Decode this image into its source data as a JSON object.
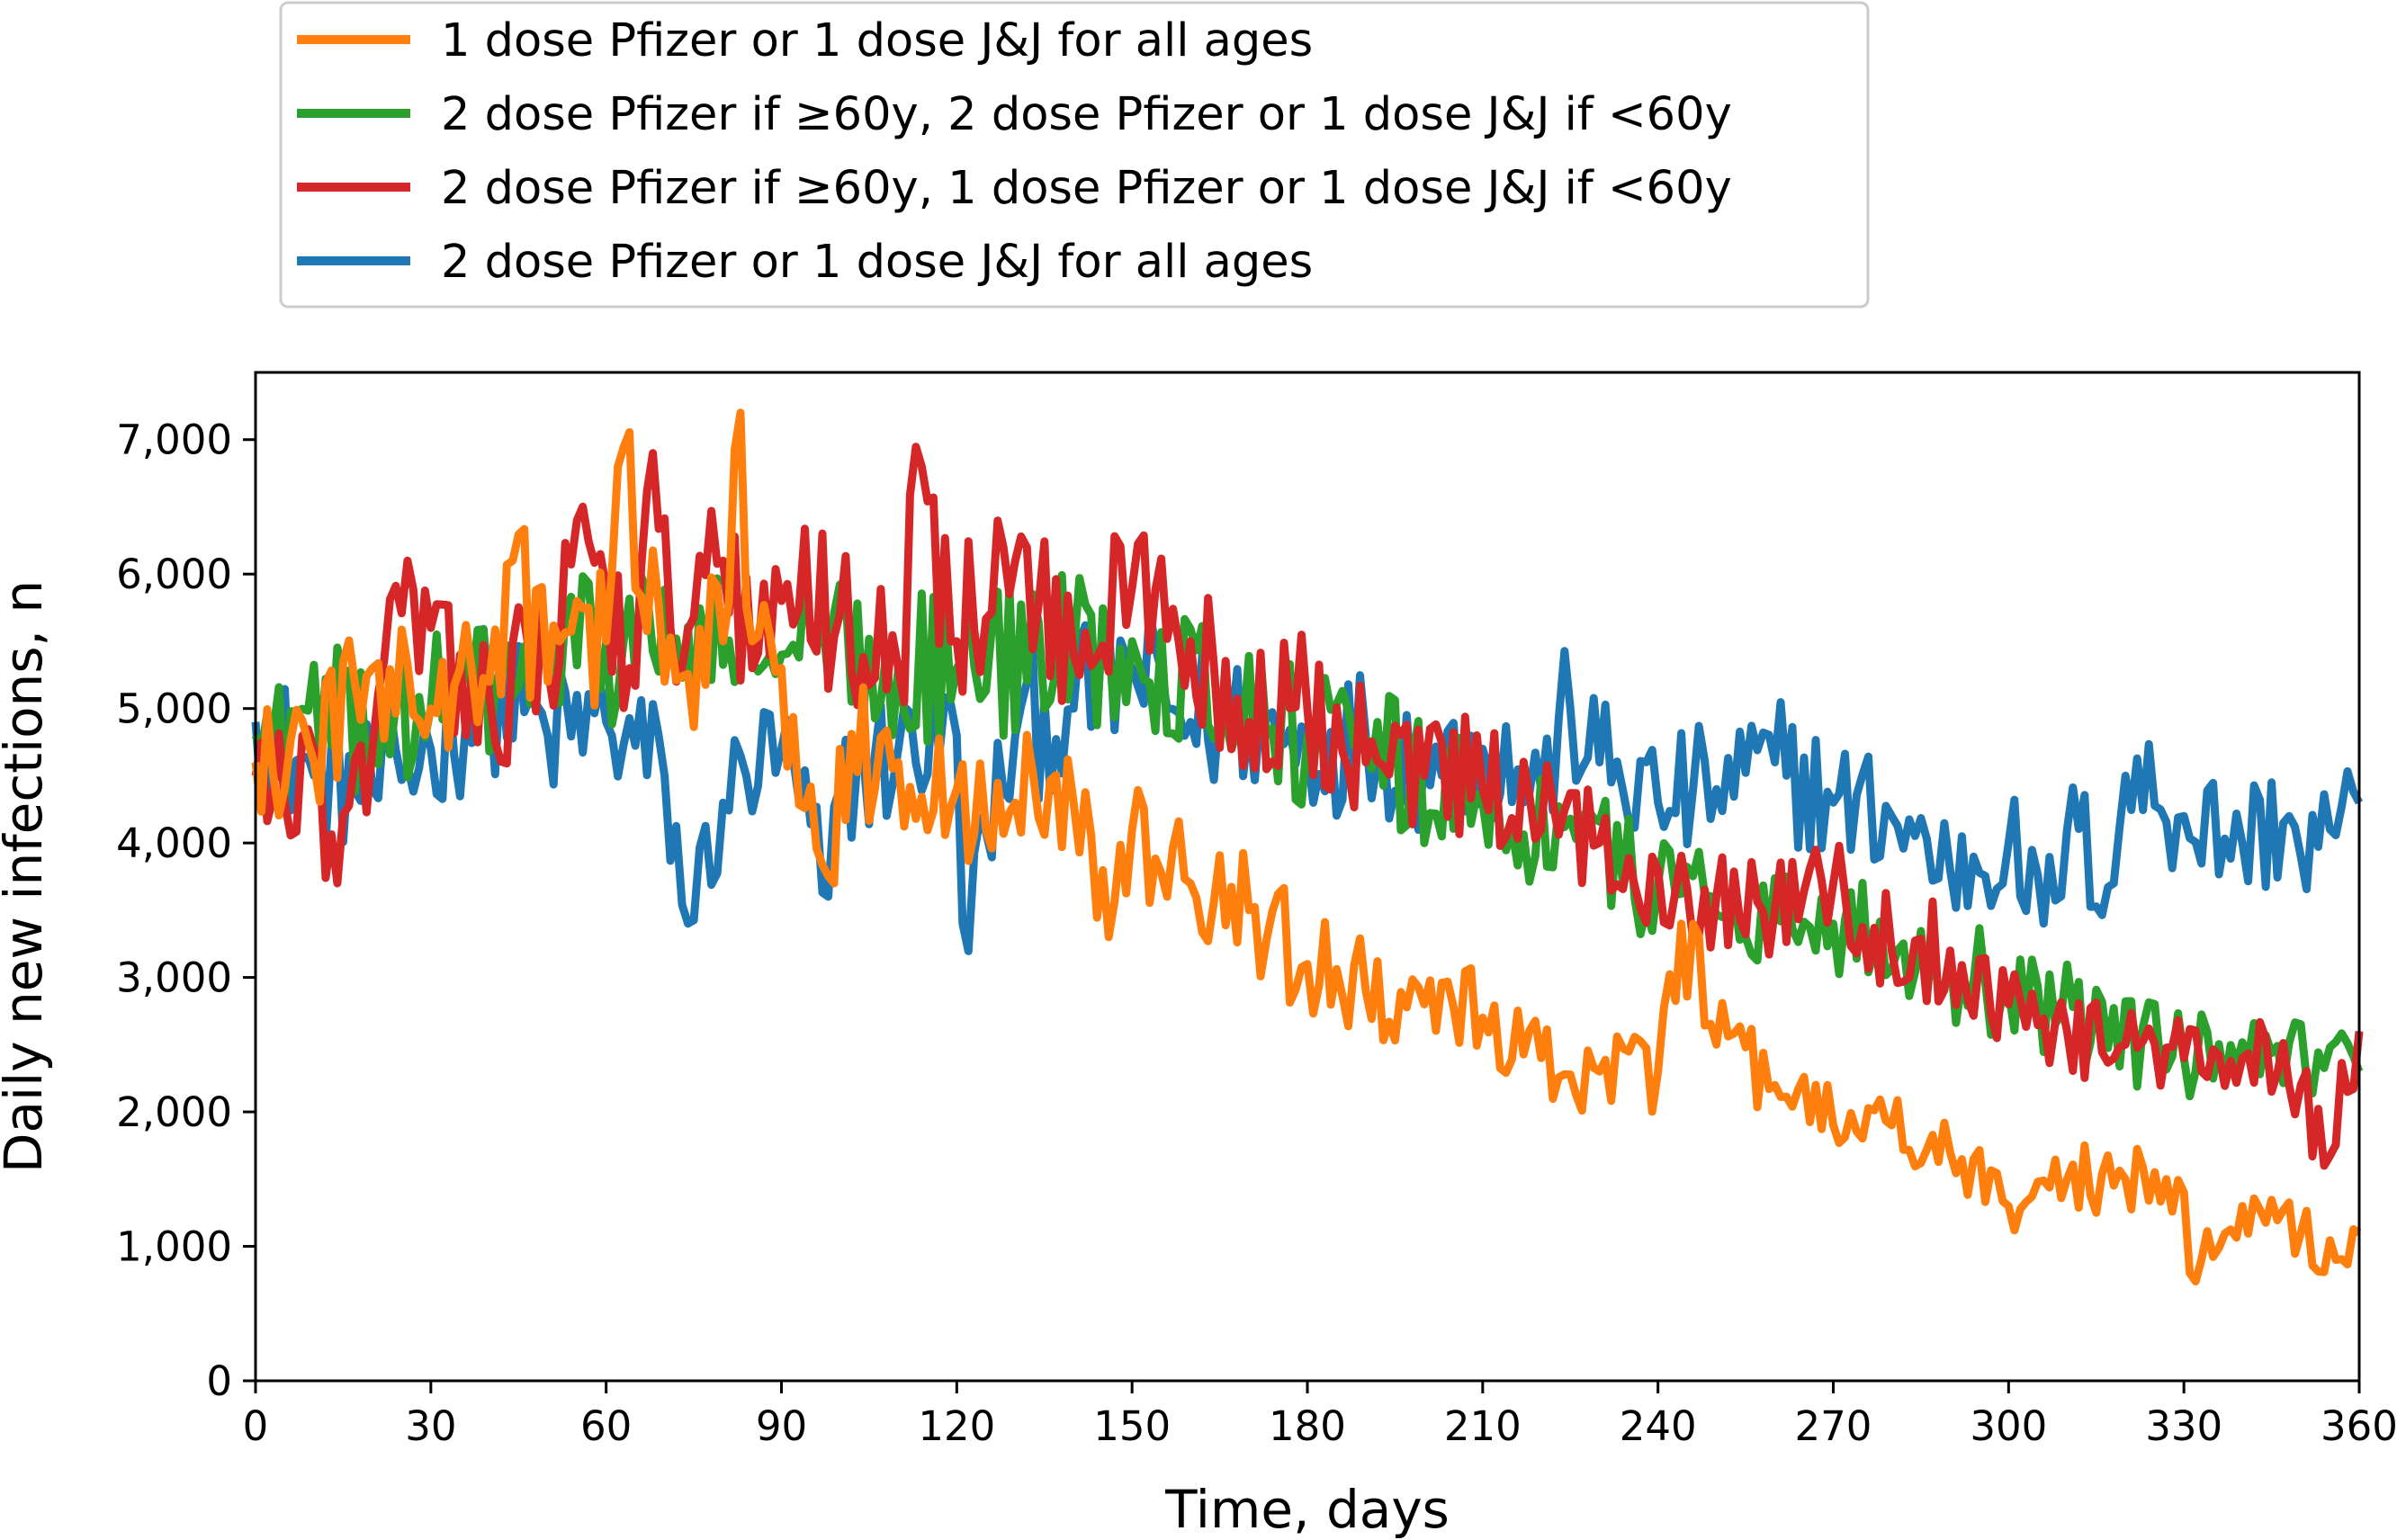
{
  "chart_data": {
    "type": "line",
    "xlabel": "Time, days",
    "ylabel": "Daily new infections, n",
    "xlim": [
      0,
      360
    ],
    "ylim": [
      0,
      7500
    ],
    "xticks": [
      {
        "v": 0,
        "label": "0"
      },
      {
        "v": 30,
        "label": "30"
      },
      {
        "v": 60,
        "label": "60"
      },
      {
        "v": 90,
        "label": "90"
      },
      {
        "v": 120,
        "label": "120"
      },
      {
        "v": 150,
        "label": "150"
      },
      {
        "v": 180,
        "label": "180"
      },
      {
        "v": 210,
        "label": "210"
      },
      {
        "v": 240,
        "label": "240"
      },
      {
        "v": 270,
        "label": "270"
      },
      {
        "v": 300,
        "label": "300"
      },
      {
        "v": 330,
        "label": "330"
      },
      {
        "v": 360,
        "label": "360"
      }
    ],
    "yticks": [
      {
        "v": 0,
        "label": "0"
      },
      {
        "v": 1000,
        "label": "1,000"
      },
      {
        "v": 2000,
        "label": "2,000"
      },
      {
        "v": 3000,
        "label": "3,000"
      },
      {
        "v": 4000,
        "label": "4,000"
      },
      {
        "v": 5000,
        "label": "5,000"
      },
      {
        "v": 6000,
        "label": "6,000"
      },
      {
        "v": 7000,
        "label": "7,000"
      }
    ],
    "grid": false,
    "legend_position": "top",
    "series": [
      {
        "name": "2 dose Pfizer or 1 dose J&J for all ages",
        "color": "#1f77b4",
        "x": [
          0,
          10,
          20,
          30,
          40,
          50,
          60,
          70,
          74,
          80,
          90,
          98,
          100,
          110,
          120,
          121,
          130,
          140,
          150,
          160,
          170,
          180,
          190,
          200,
          210,
          220,
          225,
          230,
          240,
          250,
          260,
          270,
          280,
          290,
          300,
          306,
          310,
          318,
          320,
          330,
          340,
          348,
          350,
          355,
          360
        ],
        "y": [
          4900,
          4500,
          4400,
          4700,
          5100,
          4800,
          4900,
          4500,
          3400,
          4300,
          4700,
          3600,
          4400,
          4700,
          4800,
          3400,
          4800,
          5000,
          5300,
          4900,
          4900,
          4700,
          4800,
          4600,
          4700,
          4400,
          5000,
          4600,
          4300,
          4400,
          4600,
          4300,
          4200,
          3800,
          4000,
          3400,
          4100,
          3700,
          4500,
          4200,
          4000,
          4200,
          3900,
          4100,
          4300
        ]
      },
      {
        "name": "2 dose Pfizer if ≥60y, 2 dose Pfizer or 1 dose J&J if <60y",
        "color": "#2ca02c",
        "x": [
          0,
          30,
          60,
          90,
          120,
          150,
          180,
          210,
          240,
          270,
          300,
          330,
          360
        ],
        "y": [
          4800,
          5000,
          5500,
          5400,
          5300,
          5500,
          4800,
          4300,
          3700,
          3400,
          2900,
          2400,
          2300
        ]
      },
      {
        "name": "2 dose Pfizer if ≥60y, 1 dose Pfizer or 1 dose J&J if <60y",
        "color": "#d62728",
        "x": [
          0,
          5,
          10,
          14,
          20,
          26,
          30,
          40,
          50,
          55,
          60,
          64,
          68,
          72,
          80,
          85,
          90,
          100,
          110,
          114,
          120,
          130,
          140,
          150,
          160,
          170,
          180,
          190,
          200,
          210,
          220,
          230,
          240,
          250,
          260,
          270,
          280,
          290,
          300,
          310,
          320,
          330,
          340,
          350,
          354,
          360
        ],
        "y": [
          4500,
          4300,
          4700,
          3700,
          4700,
          6100,
          5600,
          5100,
          5300,
          6400,
          5900,
          5300,
          6900,
          5200,
          6100,
          5300,
          5800,
          5700,
          5300,
          6800,
          5500,
          6100,
          5400,
          5900,
          5500,
          4900,
          5000,
          4600,
          4500,
          4400,
          4100,
          4000,
          3800,
          3600,
          3500,
          3700,
          3200,
          3200,
          2800,
          2600,
          2500,
          2400,
          2400,
          2200,
          1600,
          2600
        ]
      },
      {
        "name": "1 dose Pfizer or 1 dose J&J for all ages",
        "color": "#ff7f0e",
        "x": [
          0,
          10,
          20,
          30,
          40,
          44,
          50,
          55,
          60,
          62,
          70,
          80,
          83,
          85,
          90,
          99,
          100,
          110,
          120,
          130,
          140,
          146,
          150,
          160,
          170,
          180,
          190,
          200,
          210,
          220,
          230,
          240,
          244,
          250,
          260,
          270,
          280,
          290,
          300,
          310,
          320,
          330,
          331,
          340,
          350,
          356,
          360
        ],
        "y": [
          4600,
          4600,
          5300,
          5000,
          5200,
          6100,
          5200,
          5800,
          5500,
          6800,
          5200,
          5500,
          7200,
          5500,
          5300,
          3700,
          4700,
          4600,
          4400,
          4300,
          4300,
          3300,
          4100,
          3700,
          3500,
          3100,
          2900,
          2800,
          2700,
          2400,
          2300,
          2300,
          3400,
          2500,
          2200,
          1900,
          1900,
          1700,
          1300,
          1500,
          1500,
          1400,
          800,
          1300,
          1100,
          900,
          1100
        ]
      }
    ],
    "legend_order": [
      3,
      1,
      2,
      0
    ]
  }
}
